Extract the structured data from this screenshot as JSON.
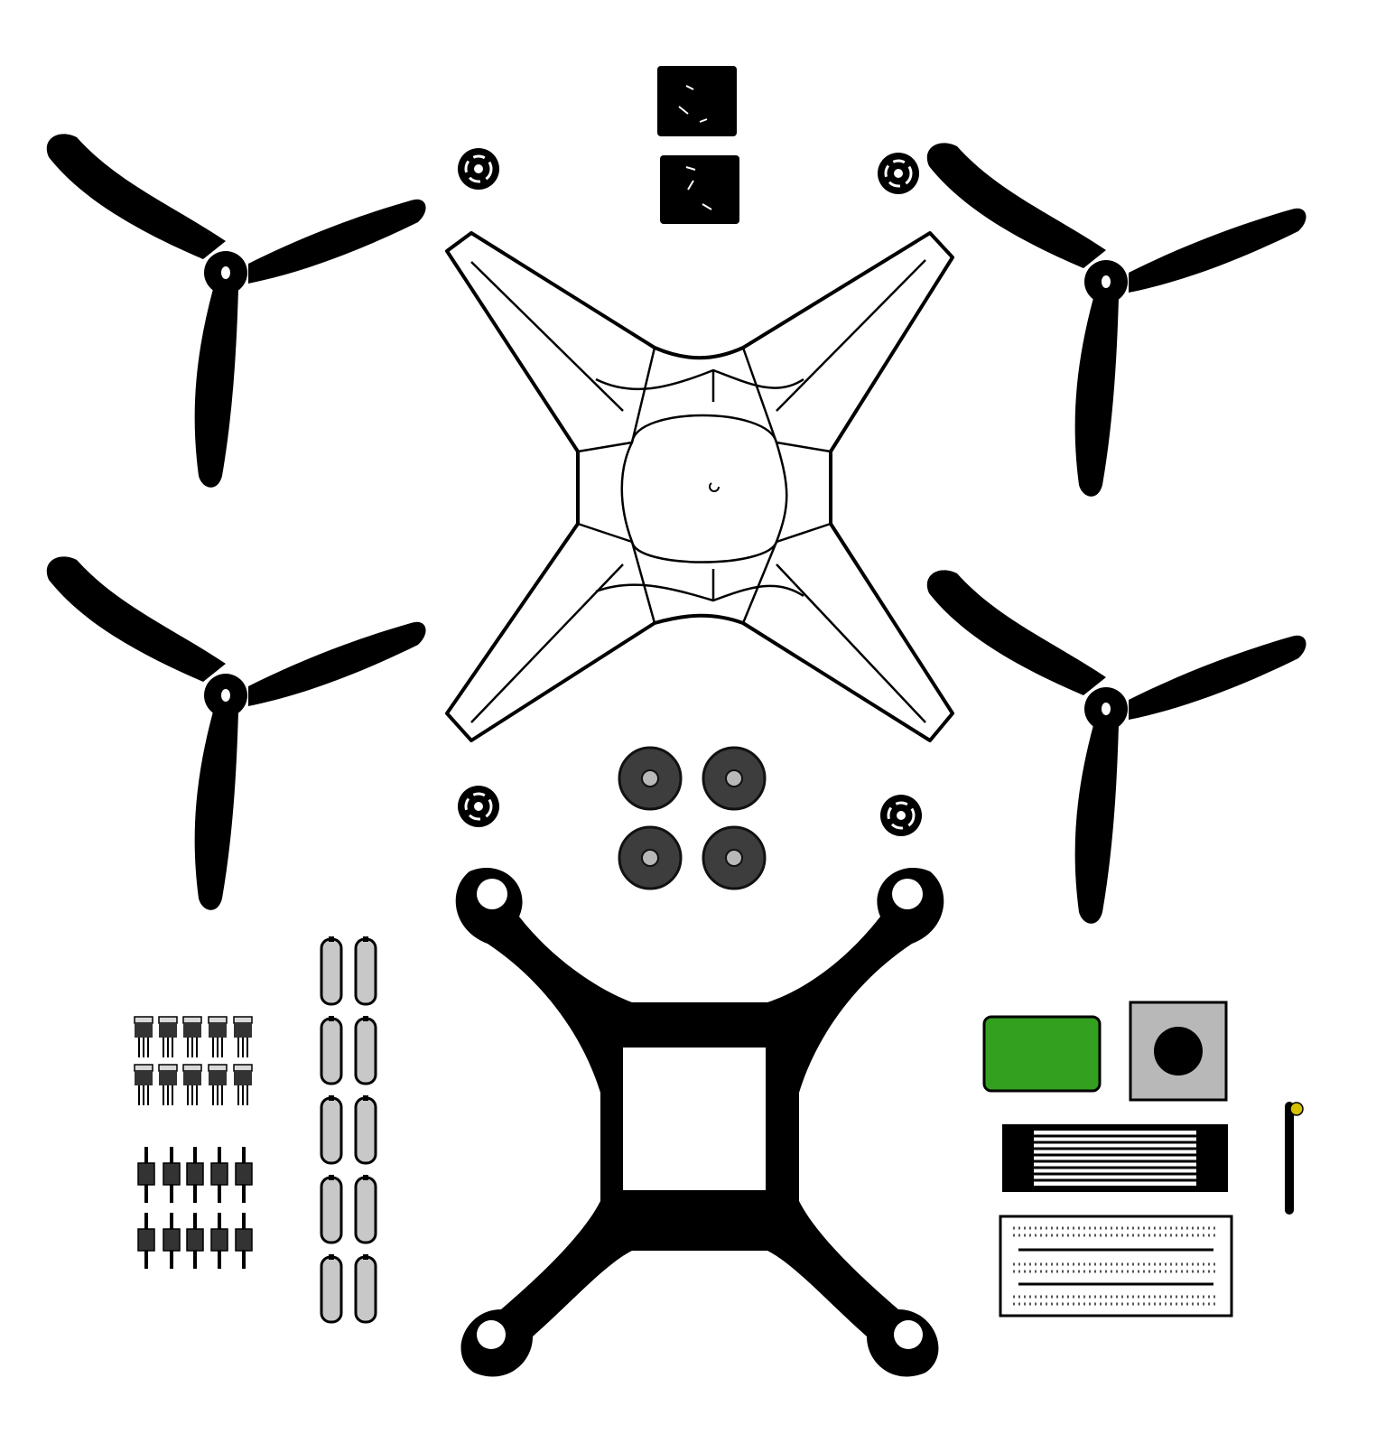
{
  "diagram": {
    "kind": "drone-kit-parts-layout",
    "background": "#ffffff",
    "colors": {
      "ink": "#000000",
      "frame_fill": "#ffffff",
      "motor_body": "#3d3d3d",
      "motor_hub": "#b8b8b8",
      "battery_fill": "#c8c8c8",
      "module_green": "#33a020",
      "sensor_gray": "#b8b8b8",
      "antenna_tip": "#d4c000",
      "transistor_body": "#333333",
      "transistor_tab": "#d8d8d8"
    },
    "parts": [
      {
        "name": "propeller",
        "count": 4
      },
      {
        "name": "motor-mount-cap",
        "count": 4
      },
      {
        "name": "velcro-strap",
        "count": 2
      },
      {
        "name": "top-frame",
        "count": 1
      },
      {
        "name": "brushless-motor",
        "count": 4
      },
      {
        "name": "bottom-frame",
        "count": 1
      },
      {
        "name": "transistor",
        "count": 10
      },
      {
        "name": "header-connector",
        "count": 10
      },
      {
        "name": "battery-cell",
        "count": 10
      },
      {
        "name": "wireless-module",
        "count": 1
      },
      {
        "name": "sensor-module",
        "count": 1
      },
      {
        "name": "ribbon-cable",
        "count": 1
      },
      {
        "name": "antenna",
        "count": 1
      },
      {
        "name": "breadboard",
        "count": 1
      }
    ]
  }
}
